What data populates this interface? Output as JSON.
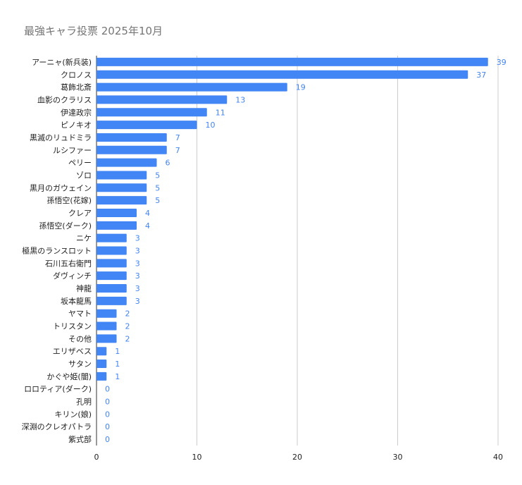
{
  "chart_data": {
    "type": "bar",
    "orientation": "horizontal",
    "title": "最強キャラ投票 2025年10月",
    "categories": [
      "アーニャ(新兵装)",
      "クロノス",
      "葛飾北斎",
      "血影のクラリス",
      "伊達政宗",
      "ピノキオ",
      "黒滅のリュドミラ",
      "ルシファー",
      "ペリー",
      "ゾロ",
      "黒月のガウェイン",
      "孫悟空(花嫁)",
      "クレア",
      "孫悟空(ダーク)",
      "ニケ",
      "極黒のランスロット",
      "石川五右衛門",
      "ダヴィンチ",
      "神龍",
      "坂本龍馬",
      "ヤマト",
      "トリスタン",
      "その他",
      "エリザベス",
      "サタン",
      "かぐや姫(闇)",
      "ロロティア(ダーク)",
      "孔明",
      "キリン(娘)",
      "深淵のクレオパトラ",
      "紫式部"
    ],
    "values": [
      39,
      37,
      19,
      13,
      11,
      10,
      7,
      7,
      6,
      5,
      5,
      5,
      4,
      4,
      3,
      3,
      3,
      3,
      3,
      3,
      2,
      2,
      2,
      1,
      1,
      1,
      0,
      0,
      0,
      0,
      0
    ],
    "xlim": [
      0,
      40
    ],
    "xticks": [
      0,
      10,
      20,
      30,
      40
    ],
    "grid": true,
    "legend": "none",
    "bar_color": "#4285f4",
    "label_color": "#4285f4",
    "grid_color": "#cccccc"
  }
}
